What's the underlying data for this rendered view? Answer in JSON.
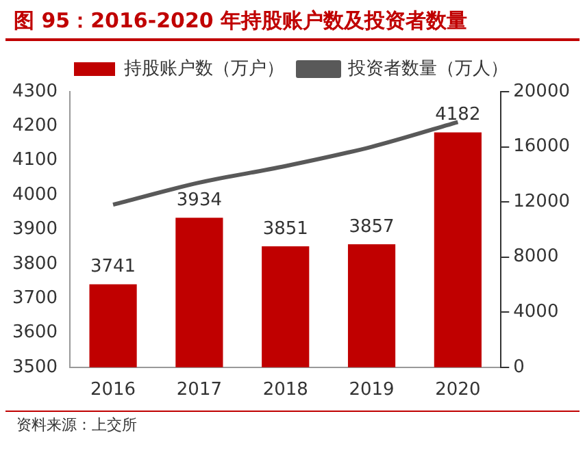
{
  "chart_data": {
    "type": "bar",
    "title": "图 95：2016-2020 年持股账户数及投资者数量",
    "categories": [
      "2016",
      "2017",
      "2018",
      "2019",
      "2020"
    ],
    "series": [
      {
        "name": "持股账户数（万户）",
        "color": "#c00000",
        "values": [
          3741,
          3934,
          3851,
          3857,
          4182
        ],
        "value_labels": [
          "3741",
          "3934",
          "3851",
          "3857",
          "4182"
        ]
      },
      {
        "name": "投资者数量（万人）",
        "type": "line",
        "axis": "y2",
        "color": "#595959",
        "values": [
          11800,
          13400,
          14600,
          16000,
          17800
        ]
      }
    ],
    "ylim": [
      3500,
      4300
    ],
    "yticks": [
      3500,
      3600,
      3700,
      3800,
      3900,
      4000,
      4100,
      4200,
      4300
    ],
    "y2lim": [
      0,
      20000
    ],
    "y2ticks": [
      0,
      4000,
      8000,
      12000,
      16000,
      20000
    ],
    "legend": "top",
    "marker": "none",
    "grid": false,
    "annotations": [
      "资料来源：上交所"
    ]
  }
}
